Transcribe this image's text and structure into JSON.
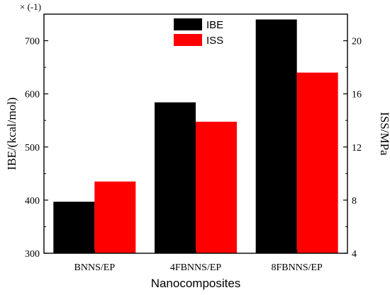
{
  "chart_data": {
    "type": "bar",
    "categories": [
      "BNNS/EP",
      "4FBNNS/EP",
      "8FBNNS/EP"
    ],
    "series": [
      {
        "name": "IBE",
        "axis": "left",
        "color": "#000000",
        "values": [
          397,
          584,
          740
        ]
      },
      {
        "name": "ISS",
        "axis": "right",
        "color": "#ff0000",
        "values": [
          9.4,
          13.9,
          17.6
        ]
      }
    ],
    "xlabel": "Nanocomposites",
    "ylabel": "IBE/(kcal/mol)",
    "ylabel_right": "ISS/MPa",
    "ylim": [
      300,
      750
    ],
    "ylim_right": [
      4,
      22
    ],
    "yticks": [
      300,
      400,
      500,
      600,
      700
    ],
    "yticks_right": [
      4,
      8,
      12,
      16,
      20
    ],
    "multiplier_label": "× (-1)",
    "legend_position": "top-center",
    "grid": false
  }
}
